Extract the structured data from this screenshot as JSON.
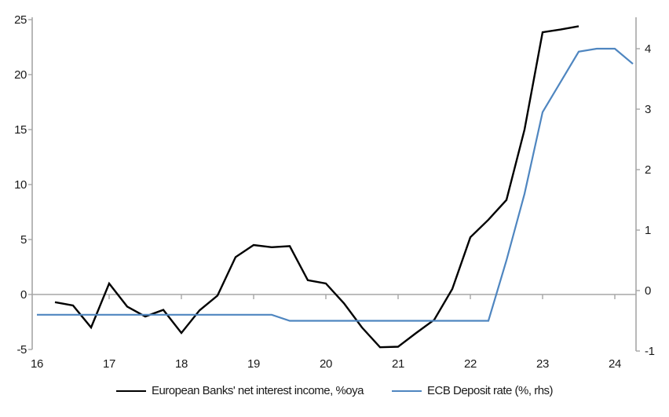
{
  "chart_data": {
    "type": "line",
    "title": "",
    "grid": "zero-line-only",
    "legend_position": "bottom",
    "x_axis": {
      "labels": [
        "16",
        "17",
        "18",
        "19",
        "20",
        "21",
        "22",
        "23",
        "24"
      ],
      "label_positions": [
        16,
        17,
        18,
        19,
        20,
        21,
        22,
        23,
        24
      ],
      "tick_positions": [
        17,
        18,
        19,
        20,
        21,
        22,
        23,
        24
      ],
      "range": [
        16,
        24.3
      ]
    },
    "left_axis": {
      "ticks": [
        -5,
        0,
        5,
        10,
        15,
        20,
        25
      ],
      "range": [
        -5,
        25
      ]
    },
    "right_axis": {
      "ticks": [
        -1,
        0,
        1,
        2,
        3,
        4
      ],
      "range": [
        -1,
        4
      ]
    },
    "series": [
      {
        "name": "European Banks' net interest income, %oya",
        "axis": "left",
        "color": "#000000",
        "stroke_width": 2.4,
        "x": [
          16.25,
          16.5,
          16.75,
          17.0,
          17.25,
          17.5,
          17.75,
          18.0,
          18.25,
          18.5,
          18.75,
          19.0,
          19.25,
          19.5,
          19.75,
          20.0,
          20.25,
          20.5,
          20.75,
          21.0,
          21.25,
          21.5,
          21.75,
          22.0,
          22.25,
          22.5,
          22.75,
          23.0,
          23.25,
          23.5
        ],
        "values": [
          -0.7,
          -1.0,
          -3.0,
          1.0,
          -1.1,
          -2.0,
          -1.4,
          -3.5,
          -1.45,
          -0.1,
          3.4,
          4.5,
          4.3,
          4.4,
          1.3,
          1.0,
          -0.8,
          -3.0,
          -4.8,
          -4.75,
          -3.5,
          -2.3,
          0.5,
          5.2,
          6.8,
          8.6,
          15.0,
          23.85,
          24.1,
          24.4
        ]
      },
      {
        "name": "ECB Deposit rate (%, rhs)",
        "axis": "right",
        "color": "#4f86c0",
        "stroke_width": 2.2,
        "x": [
          16.0,
          16.25,
          16.5,
          16.75,
          17.0,
          17.25,
          17.5,
          17.75,
          18.0,
          18.25,
          18.5,
          18.75,
          19.0,
          19.25,
          19.5,
          19.75,
          20.0,
          20.25,
          20.5,
          20.75,
          21.0,
          21.25,
          21.5,
          21.75,
          22.0,
          22.25,
          22.5,
          22.75,
          23.0,
          23.25,
          23.5,
          23.75,
          24.0,
          24.25
        ],
        "values": [
          -0.4,
          -0.4,
          -0.4,
          -0.4,
          -0.4,
          -0.4,
          -0.4,
          -0.4,
          -0.4,
          -0.4,
          -0.4,
          -0.4,
          -0.4,
          -0.4,
          -0.5,
          -0.5,
          -0.5,
          -0.5,
          -0.5,
          -0.5,
          -0.5,
          -0.5,
          -0.5,
          -0.5,
          -0.5,
          -0.5,
          0.5,
          1.6,
          2.95,
          3.45,
          3.95,
          4.0,
          4.0,
          3.75
        ]
      }
    ]
  },
  "colors": {
    "axis_line": "#a6a6a6",
    "zero_gridline": "#a6a6a6",
    "tick_text": "#1a1a1a",
    "nii_line": "#000000",
    "ecb_line": "#4f86c0"
  }
}
